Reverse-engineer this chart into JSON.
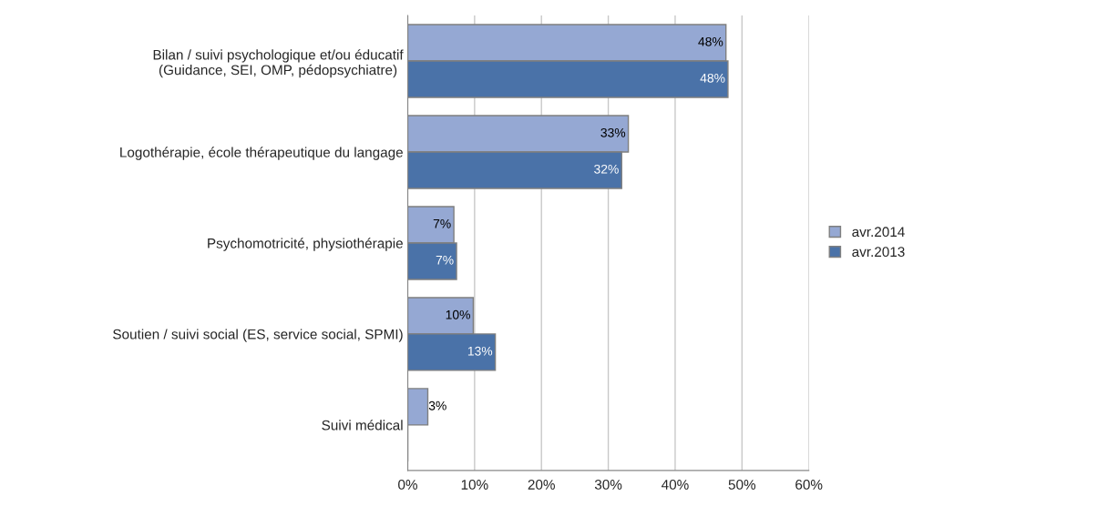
{
  "chart_data": {
    "type": "bar",
    "orientation": "horizontal",
    "categories": [
      "Bilan / suivi psychologique et/ou éducatif\n(Guidance, SEI, OMP, pédopsychiatre)",
      "Logothérapie, école thérapeutique du langage",
      "Psychomotricité, physiothérapie",
      "Soutien / suivi social (ES, service social, SPMI)",
      "Suivi médical"
    ],
    "series": [
      {
        "name": "avr.2014",
        "color": "#95a8d3",
        "values": [
          47.6,
          33.0,
          6.9,
          9.8,
          3.0
        ],
        "value_labels": [
          "48%",
          "33%",
          "7%",
          "10%",
          "3%"
        ]
      },
      {
        "name": "avr.2013",
        "color": "#4a72a8",
        "values": [
          47.9,
          32.0,
          7.3,
          13.1,
          null
        ],
        "value_labels": [
          "48%",
          "32%",
          "7%",
          "13%",
          null
        ]
      }
    ],
    "xlim": [
      0,
      60
    ],
    "xticks": [
      {
        "value": 0,
        "label": "0%"
      },
      {
        "value": 10,
        "label": "10%"
      },
      {
        "value": 20,
        "label": "20%"
      },
      {
        "value": 30,
        "label": "30%"
      },
      {
        "value": 40,
        "label": "40%"
      },
      {
        "value": 50,
        "label": "50%"
      },
      {
        "value": 60,
        "label": "60%"
      }
    ],
    "grid": "x",
    "legend": "right"
  }
}
